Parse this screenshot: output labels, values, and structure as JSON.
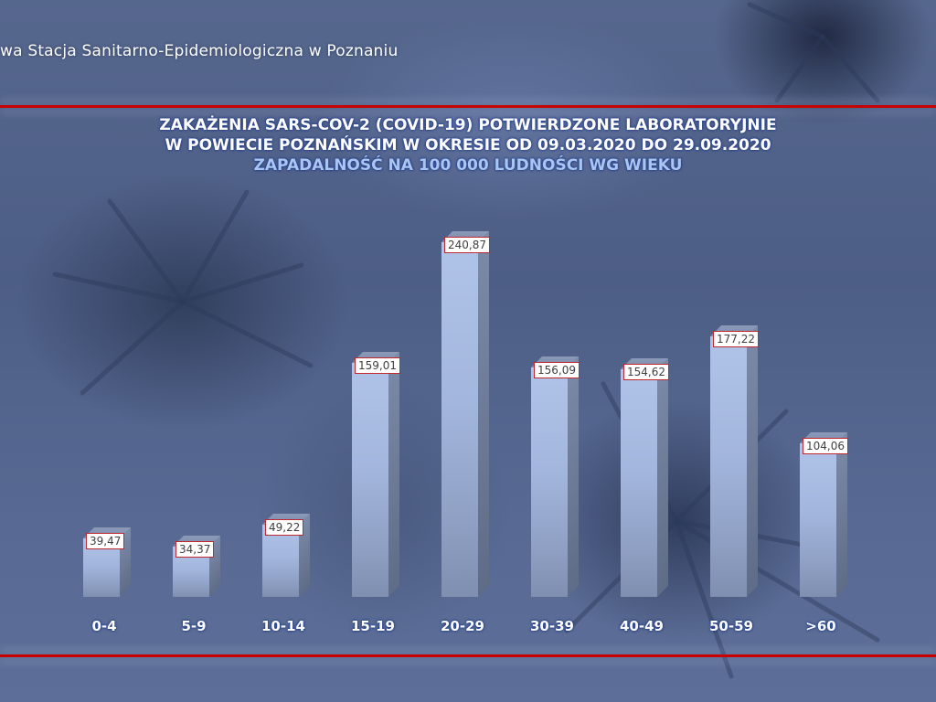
{
  "header": {
    "organization": "wa Stacja Sanitarno-Epidemiologiczna w Poznaniu"
  },
  "chart_data": {
    "type": "bar",
    "title": "ZAKAŻENIA SARS-COV-2 (COVID-19) POTWIERDZONE LABORATORYJNIE",
    "title_line2": "W POWIECIE POZNAŃSKIM W OKRESIE OD 09.03.2020 DO 29.09.2020",
    "subtitle": "ZAPADALNOŚĆ NA 100 000 LUDNOŚCI WG WIEKU",
    "xlabel": "",
    "ylabel": "",
    "categories": [
      "0-4",
      "5-9",
      "10-14",
      "15-19",
      "20-29",
      "30-39",
      "40-49",
      "50-59",
      ">60"
    ],
    "values": [
      39.47,
      34.37,
      49.22,
      159.01,
      240.87,
      156.09,
      154.62,
      177.22,
      104.06
    ],
    "value_labels": [
      "39,47",
      "34,37",
      "49,22",
      "159,01",
      "240,87",
      "156,09",
      "154,62",
      "177,22",
      "104,06"
    ],
    "ylim": [
      0,
      250
    ],
    "grid": false,
    "legend": "none",
    "style": "3d-column",
    "colors": {
      "bar_front": "#a3b6dd",
      "bar_side": "#6a7792",
      "label_border": "#c0282d",
      "rule": "#c80000",
      "title": "#ffffff",
      "subtitle": "#a9c6f2"
    }
  }
}
